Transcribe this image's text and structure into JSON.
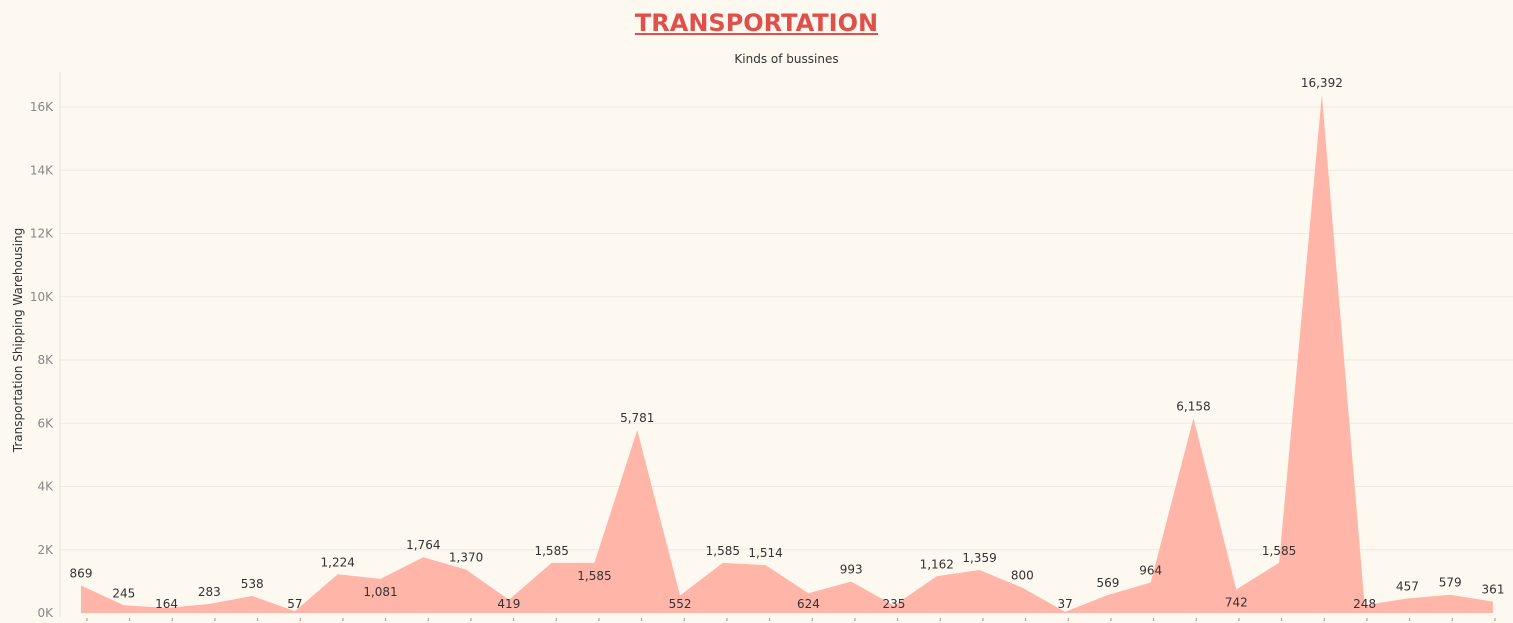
{
  "chart_data": {
    "type": "area",
    "title": "TRANSPORTATION",
    "subtitle": "Kinds of bussines",
    "ylabel": "Transportation Shipping Warehousing",
    "xlabel": "",
    "ylim": [
      0,
      17000
    ],
    "yticks": [
      0,
      2000,
      4000,
      6000,
      8000,
      10000,
      12000,
      14000,
      16000
    ],
    "ytick_labels": [
      "0K",
      "2K",
      "4K",
      "6K",
      "8K",
      "10K",
      "12K",
      "14K",
      "16K"
    ],
    "grid": true,
    "series": [
      {
        "color": "#ffb5a8",
        "values": [
          869,
          245,
          164,
          283,
          538,
          57,
          1224,
          1081,
          1764,
          1370,
          419,
          1585,
          1585,
          5781,
          552,
          1585,
          1514,
          624,
          993,
          235,
          1162,
          1359,
          800,
          37,
          569,
          964,
          6158,
          742,
          1585,
          16392,
          248,
          457,
          579,
          361
        ],
        "labels": [
          "869",
          "245",
          "164",
          "283",
          "538",
          "57",
          "1,224",
          "1,081",
          "1,764",
          "1,370",
          "419",
          "1,585",
          "1,585",
          "5,781",
          "552",
          "1,585",
          "1,514",
          "624",
          "993",
          "235",
          "1,162",
          "1,359",
          "800",
          "37",
          "569",
          "964",
          "6,158",
          "742",
          "1,585",
          "16,392",
          "248",
          "457",
          "579",
          "361"
        ]
      }
    ]
  }
}
